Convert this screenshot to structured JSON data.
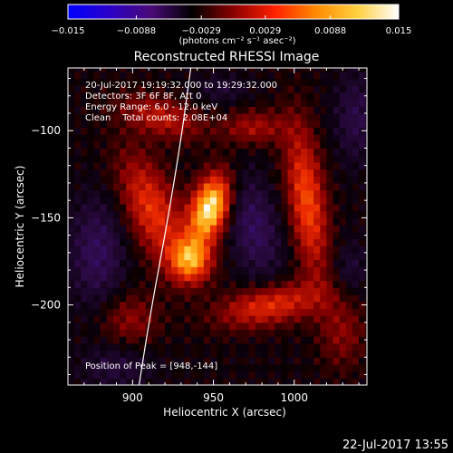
{
  "chart_data": {
    "type": "heatmap",
    "title": "Reconstructed RHESSI Image",
    "xlabel": "Heliocentric X (arcsec)",
    "ylabel": "Heliocentric Y (arcsec)",
    "xlim": [
      860,
      1045
    ],
    "ylim": [
      -246,
      -64
    ],
    "x_ticks": [
      900,
      950,
      1000
    ],
    "y_ticks": [
      -100,
      -150,
      -200
    ],
    "colorbar": {
      "range": [
        -0.015,
        0.015
      ],
      "ticks": [
        "-0.015",
        "-0.0088",
        "-0.0029",
        "0.0029",
        "0.0088",
        "0.015"
      ],
      "label": "(photons cm⁻² s⁻¹ asec⁻²)",
      "colors": [
        "#0000ff",
        "#2a00c8",
        "#4a0a78",
        "#000000",
        "#8a0000",
        "#ff2000",
        "#ff8a00",
        "#ffd040",
        "#ffffff"
      ]
    },
    "sources": [
      {
        "x": 948,
        "y": -144,
        "peak": 0.015,
        "sx": 8,
        "sy": 14,
        "rot": -20
      },
      {
        "x": 936,
        "y": -174,
        "peak": 0.0105,
        "sx": 9,
        "sy": 9,
        "rot": 0
      },
      {
        "x": 912,
        "y": -145,
        "peak": 0.0075,
        "sx": 11,
        "sy": 24,
        "rot": 25
      },
      {
        "x": 918,
        "y": -92,
        "peak": 0.0055,
        "sx": 18,
        "sy": 8,
        "rot": -15
      },
      {
        "x": 1008,
        "y": -140,
        "peak": 0.0085,
        "sx": 8,
        "sy": 30,
        "rot": 8
      },
      {
        "x": 985,
        "y": -200,
        "peak": 0.0075,
        "sx": 22,
        "sy": 8,
        "rot": 10
      },
      {
        "x": 975,
        "y": -98,
        "peak": 0.0045,
        "sx": 14,
        "sy": 7,
        "rot": 0
      },
      {
        "x": 1030,
        "y": -215,
        "peak": 0.0035,
        "sx": 10,
        "sy": 15,
        "rot": 0
      },
      {
        "x": 898,
        "y": -208,
        "peak": 0.0038,
        "sx": 13,
        "sy": 11,
        "rot": 0
      },
      {
        "x": 878,
        "y": -170,
        "peak": -0.0045,
        "sx": 12,
        "sy": 22,
        "rot": 0
      },
      {
        "x": 975,
        "y": -155,
        "peak": -0.0045,
        "sx": 11,
        "sy": 22,
        "rot": 15
      },
      {
        "x": 1038,
        "y": -92,
        "peak": -0.0035,
        "sx": 9,
        "sy": 18,
        "rot": 0
      },
      {
        "x": 890,
        "y": -235,
        "peak": -0.0028,
        "sx": 16,
        "sy": 9,
        "rot": 0
      },
      {
        "x": 1035,
        "y": -180,
        "peak": -0.0025,
        "sx": 8,
        "sy": 12,
        "rot": 0
      },
      {
        "x": 955,
        "y": -76,
        "peak": -0.0022,
        "sx": 12,
        "sy": 6,
        "rot": 0
      }
    ],
    "limb_curve": [
      [
        936,
        -64
      ],
      [
        930,
        -105
      ],
      [
        921,
        -155
      ],
      [
        911,
        -205
      ],
      [
        904,
        -246
      ]
    ],
    "annotations": {
      "time_range": "20-Jul-2017 19:19:32.000 to 19:29:32.000",
      "detectors": "Detectors: 3F 6F 8F, Att 0",
      "energy": "Energy Range: 6.0 - 12.0 keV",
      "method": "Clean    Total counts: 2.08E+04",
      "peak_position": "Position of Peak = [948,-144]"
    },
    "timestamp": "22-Jul-2017 13:55"
  }
}
